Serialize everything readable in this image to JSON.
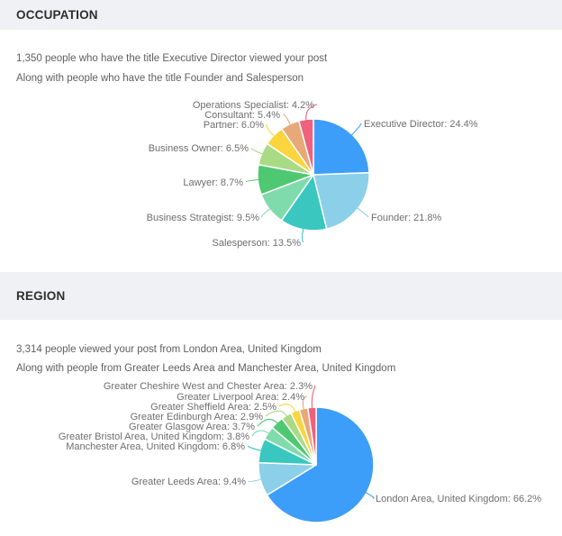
{
  "colors": {
    "background": "#FFFFFF",
    "section_header_bg": "#F0F1F4",
    "section_header_text": "#2E2E2E",
    "intro_text": "#5F5F5F",
    "pie_label_text": "#6E6E6E"
  },
  "sections": [
    {
      "header": "OCCUPATION",
      "intro_line1": "1,350 people who have the title Executive Director viewed your post",
      "intro_line2": "Along with people who have the title Founder and Salesperson"
    },
    {
      "header": "REGION",
      "intro_line1": "3,314 people viewed your post from London Area, United Kingdom",
      "intro_line2": "Along with people from Greater Leeds Area and Manchester Area, United Kingdom"
    }
  ],
  "chart_data": [
    {
      "type": "pie",
      "title": "OCCUPATION",
      "label_format": "{name}: {value}%",
      "start_angle_deg": 0,
      "direction": "clockwise",
      "slices": [
        {
          "name": "Executive Director",
          "value": 24.4,
          "color": "#3D9EF9"
        },
        {
          "name": "Founder",
          "value": 21.8,
          "color": "#8CCFE9"
        },
        {
          "name": "Salesperson",
          "value": 13.5,
          "color": "#3AC7BF"
        },
        {
          "name": "Business Strategist",
          "value": 9.5,
          "color": "#80DBAC"
        },
        {
          "name": "Lawyer",
          "value": 8.7,
          "color": "#4EC971"
        },
        {
          "name": "Business Owner",
          "value": 6.5,
          "color": "#A9DB85"
        },
        {
          "name": "Partner",
          "value": 6.0,
          "color": "#FBD43E"
        },
        {
          "name": "Consultant",
          "value": 5.4,
          "color": "#E9A877"
        },
        {
          "name": "Operations Specialist",
          "value": 4.2,
          "color": "#EF617D"
        }
      ]
    },
    {
      "type": "pie",
      "title": "REGION",
      "label_format": "{name}: {value}%",
      "start_angle_deg": 0,
      "direction": "clockwise",
      "slices": [
        {
          "name": "London Area, United Kingdom",
          "value": 66.2,
          "color": "#3D9EF9"
        },
        {
          "name": "Greater Leeds Area",
          "value": 9.4,
          "color": "#8CCFE9"
        },
        {
          "name": "Manchester Area, United Kingdom",
          "value": 6.8,
          "color": "#3AC7BF"
        },
        {
          "name": "Greater Bristol Area, United Kingdom",
          "value": 3.8,
          "color": "#80DBAC"
        },
        {
          "name": "Greater Glasgow Area",
          "value": 3.7,
          "color": "#4EC971"
        },
        {
          "name": "Greater Edinburgh Area",
          "value": 2.9,
          "color": "#A9DB85"
        },
        {
          "name": "Greater Sheffield Area",
          "value": 2.5,
          "color": "#FBD43E"
        },
        {
          "name": "Greater Liverpool Area",
          "value": 2.4,
          "color": "#E9A877"
        },
        {
          "name": "Greater Cheshire West and Chester Area",
          "value": 2.3,
          "color": "#EF617D"
        }
      ]
    }
  ]
}
